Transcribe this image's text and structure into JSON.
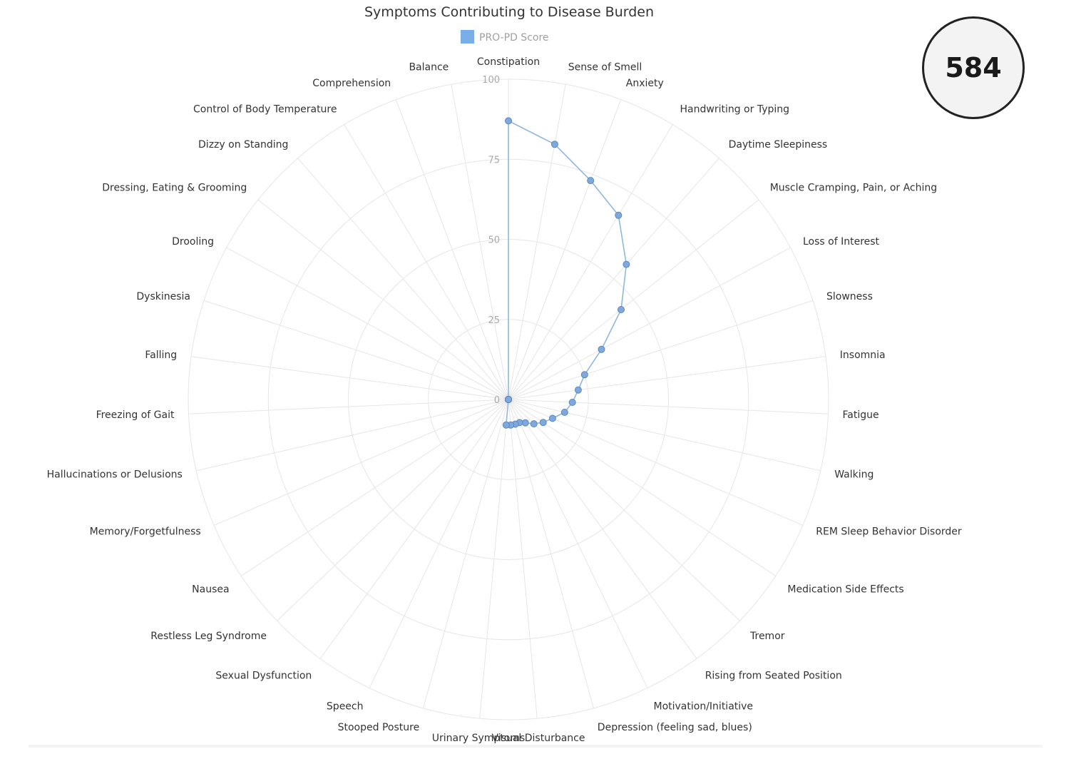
{
  "score_badge": {
    "value": "584"
  },
  "colors": {
    "series": "#7aaee8",
    "series_line": "#8fb8de",
    "point_fill": "#7fa9dc",
    "point_stroke": "#5a87c2",
    "grid": "#e6e6e6",
    "badge_border": "#222222"
  },
  "chart_data": {
    "type": "radar",
    "title": "Symptoms Contributing to Disease Burden",
    "legend": {
      "position": "top-center"
    },
    "grid": true,
    "rlim": [
      0,
      100
    ],
    "r_ticks": [
      0,
      25,
      50,
      75,
      100
    ],
    "r_tick_labels": [
      "0",
      "25",
      "50",
      "75",
      "100"
    ],
    "categories": [
      "Constipation",
      "Sense of Smell",
      "Anxiety",
      "Handwriting or Typing",
      "Daytime Sleepiness",
      "Muscle Cramping, Pain, or Aching",
      "Loss of Interest",
      "Slowness",
      "Insomnia",
      "Fatigue",
      "Walking",
      "REM Sleep Behavior Disorder",
      "Medication Side Effects",
      "Tremor",
      "Rising from Seated Position",
      "Motivation/Initiative",
      "Depression (feeling sad, blues)",
      "Visual Disturbance",
      "Urinary Symptoms",
      "Stooped Posture",
      "Speech",
      "Sexual Dysfunction",
      "Restless Leg Syndrome",
      "Nausea",
      "Memory/Forgetfulness",
      "Hallucinations or Delusions",
      "Freezing of Gait",
      "Falling",
      "Dyskinesia",
      "Drooling",
      "Dressing, Eating & Grooming",
      "Dizzy on Standing",
      "Control of Body Temperature",
      "Comprehension",
      "Balance"
    ],
    "series": [
      {
        "name": "PRO-PD Score",
        "values": [
          87,
          81,
          73,
          67,
          56,
          45,
          33,
          25,
          22,
          20,
          18,
          15,
          13,
          11,
          9,
          8,
          8,
          8,
          8,
          0,
          0,
          0,
          0,
          0,
          0,
          0,
          0,
          0,
          0,
          0,
          0,
          0,
          0,
          0,
          0
        ]
      }
    ]
  }
}
